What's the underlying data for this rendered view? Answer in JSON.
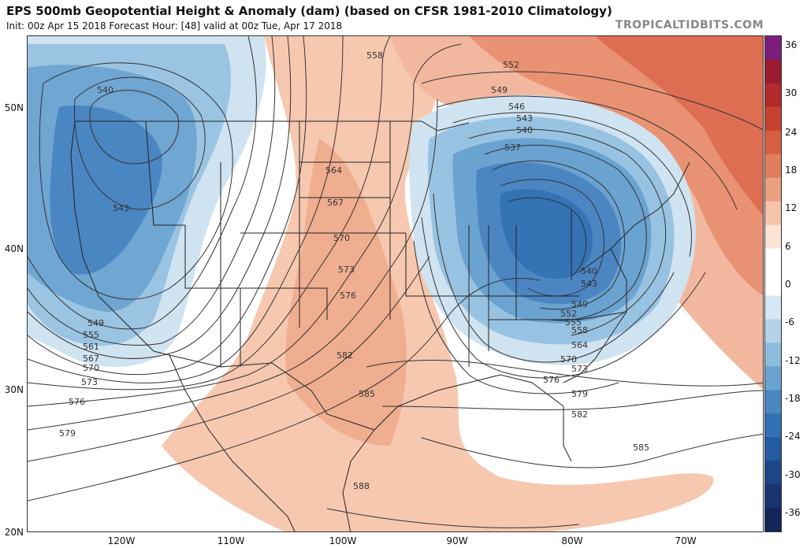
{
  "header": {
    "title": "EPS 500mb Geopotential Height & Anomaly (dam) (based on CFSR 1981-2010 Climatology)",
    "subtitle": "Init: 00z Apr 15 2018   Forecast Hour: [48]   valid at 00z Tue, Apr 17 2018",
    "site": "TROPICALTIDBITS.COM"
  },
  "map": {
    "lat_labels": [
      "50N",
      "40N",
      "30N",
      "20N"
    ],
    "lon_labels": [
      "120W",
      "110W",
      "100W",
      "90W",
      "80W",
      "70W"
    ],
    "contour_labels": [
      "558",
      "552",
      "549",
      "546",
      "543",
      "540",
      "537",
      "540",
      "543",
      "564",
      "567",
      "570",
      "573",
      "576",
      "582",
      "585",
      "588",
      "549",
      "555",
      "561",
      "567",
      "570",
      "573",
      "576",
      "579",
      "540",
      "543",
      "549",
      "552",
      "555",
      "558",
      "564",
      "570",
      "573",
      "576",
      "579",
      "582",
      "585"
    ]
  },
  "colorbar": {
    "ticks": [
      "36",
      "30",
      "24",
      "18",
      "12",
      "6",
      "0",
      "-6",
      "-12",
      "-18",
      "-24",
      "-30",
      "-36"
    ],
    "colors": [
      "#7e1e7c",
      "#9b1b30",
      "#b32a2a",
      "#c6422e",
      "#d65f42",
      "#e07e5c",
      "#eba07f",
      "#f4c3a9",
      "#fae3d5",
      "#ffffff",
      "#ffffff",
      "#d6e8f3",
      "#b4d3e8",
      "#8cbbdc",
      "#69a2cf",
      "#4a88c1",
      "#3170b2",
      "#245aa0",
      "#1d4689",
      "#183571",
      "#142659"
    ]
  }
}
